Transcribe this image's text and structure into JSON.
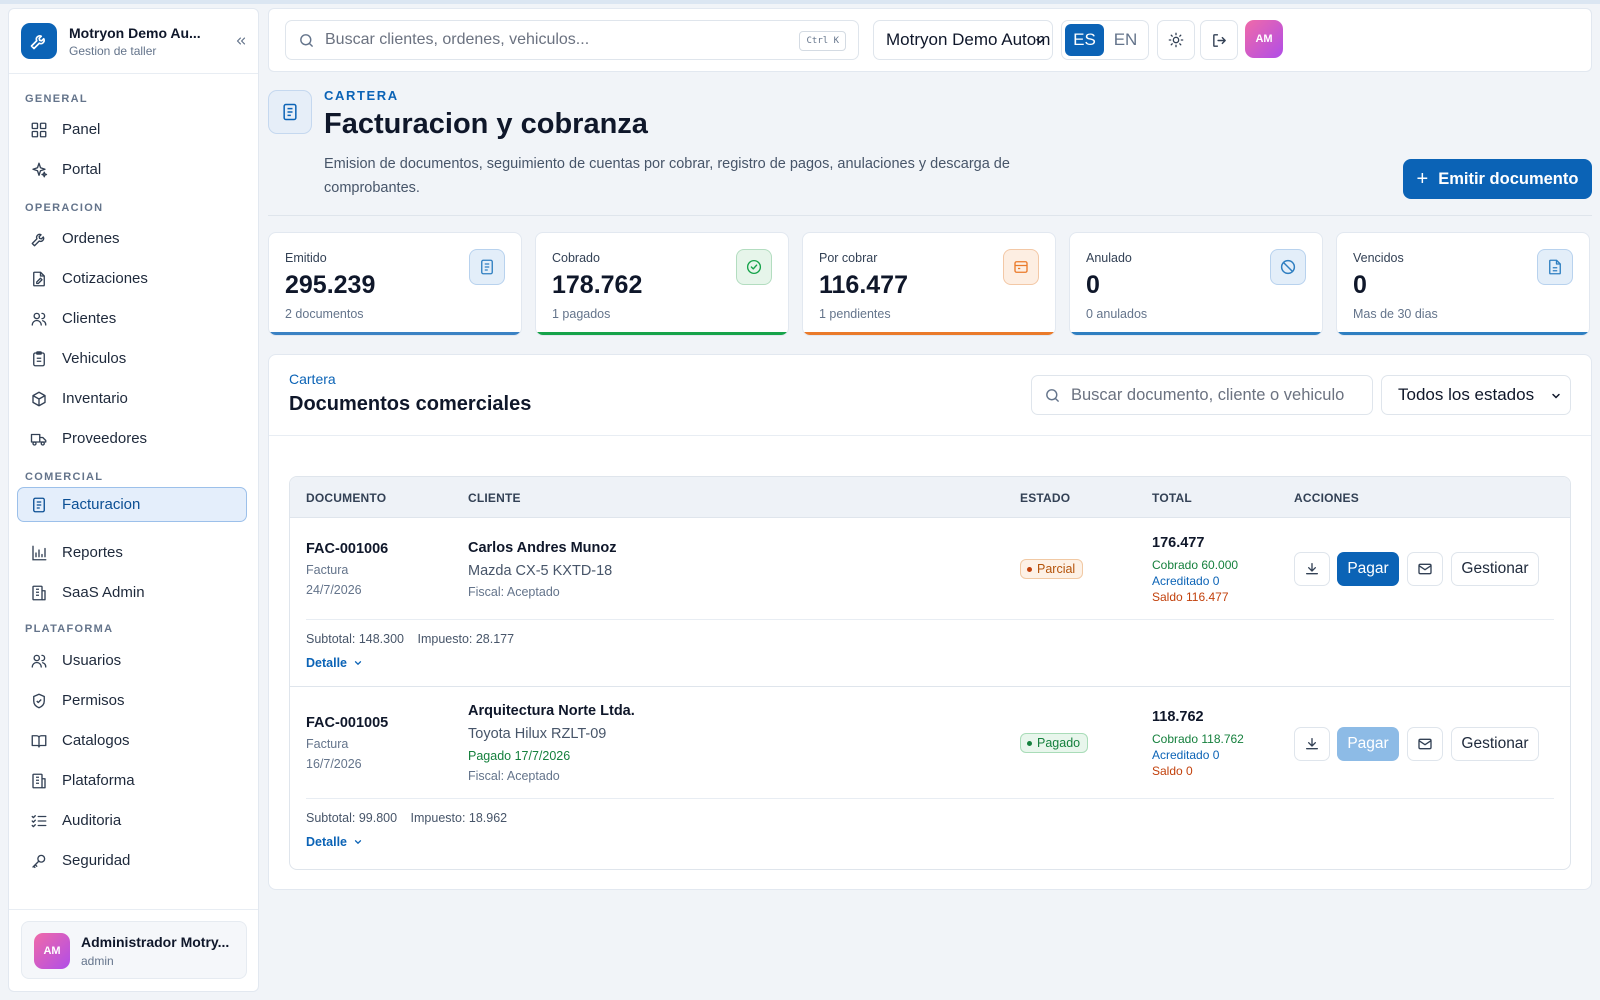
{
  "app": {
    "name": "Motryon Demo Au...",
    "subtitle": "Gestion de taller",
    "accent": "#0b63b6"
  },
  "sidebar": {
    "sections": {
      "general": "GENERAL",
      "operacion": "OPERACION",
      "comercial": "COMERCIAL",
      "plataforma": "PLATAFORMA"
    },
    "items": [
      {
        "label": "Panel",
        "icon": "grid-icon"
      },
      {
        "label": "Portal",
        "icon": "sparkle-icon"
      },
      {
        "label": "Ordenes",
        "icon": "wrench-icon"
      },
      {
        "label": "Cotizaciones",
        "icon": "document-edit-icon"
      },
      {
        "label": "Clientes",
        "icon": "users-icon"
      },
      {
        "label": "Vehiculos",
        "icon": "clipboard-icon"
      },
      {
        "label": "Inventario",
        "icon": "box-icon"
      },
      {
        "label": "Proveedores",
        "icon": "truck-icon"
      },
      {
        "label": "Facturacion",
        "icon": "receipt-icon",
        "active": true
      },
      {
        "label": "Reportes",
        "icon": "bar-chart-icon"
      },
      {
        "label": "SaaS Admin",
        "icon": "building-icon"
      },
      {
        "label": "Usuarios",
        "icon": "users-icon"
      },
      {
        "label": "Permisos",
        "icon": "shield-icon"
      },
      {
        "label": "Catalogos",
        "icon": "book-icon"
      },
      {
        "label": "Plataforma",
        "icon": "building-icon"
      },
      {
        "label": "Auditoria",
        "icon": "list-check-icon"
      },
      {
        "label": "Seguridad",
        "icon": "key-icon"
      }
    ],
    "user": {
      "initials": "AM",
      "name": "Administrador Motry...",
      "role": "admin"
    }
  },
  "topbar": {
    "search_placeholder": "Buscar clientes, ordenes, vehiculos...",
    "shortcut": "Ctrl K",
    "company": "Motryon Demo Autom",
    "languages": [
      "ES",
      "EN"
    ],
    "active_language": "ES",
    "avatar": "AM"
  },
  "header": {
    "eyebrow": "CARTERA",
    "title": "Facturacion y cobranza",
    "description": "Emision de documentos, seguimiento de cuentas por cobrar, registro de pagos, anulaciones y descarga de comprobantes.",
    "primary_action": "Emitir documento"
  },
  "stats": [
    {
      "label": "Emitido",
      "value": "295.239",
      "sub": "2 documentos",
      "icon": "receipt-icon",
      "color": "#3b82c4"
    },
    {
      "label": "Cobrado",
      "value": "178.762",
      "sub": "1 pagados",
      "icon": "check-circle-icon",
      "color": "#16a34a"
    },
    {
      "label": "Por cobrar",
      "value": "116.477",
      "sub": "1 pendientes",
      "icon": "wallet-icon",
      "color": "#ea7a2a"
    },
    {
      "label": "Anulado",
      "value": "0",
      "sub": "0 anulados",
      "icon": "ban-icon",
      "color": "#2f7fc1"
    },
    {
      "label": "Vencidos",
      "value": "0",
      "sub": "Mas de 30 dias",
      "icon": "document-icon",
      "color": "#2f7fc1"
    }
  ],
  "panel": {
    "eyebrow": "Cartera",
    "title": "Documentos comerciales",
    "search_placeholder": "Buscar documento, cliente o vehiculo",
    "status_filter": "Todos los estados",
    "columns": [
      "DOCUMENTO",
      "CLIENTE",
      "ESTADO",
      "TOTAL",
      "ACCIONES"
    ],
    "rows": [
      {
        "id": "FAC-001006",
        "type": "Factura",
        "date": "24/7/2026",
        "client": "Carlos Andres Munoz",
        "vehicle": "Mazda CX-5 KXTD-18",
        "paid_on": "",
        "fiscal": "Fiscal: Aceptado",
        "status": "Parcial",
        "total": "176.477",
        "collected": "Cobrado 60.000",
        "credited": "Acreditado 0",
        "balance": "Saldo 116.477",
        "pay": "Pagar",
        "manage": "Gestionar",
        "subtotal": "Subtotal: 148.300",
        "tax": "Impuesto: 28.177",
        "detail": "Detalle"
      },
      {
        "id": "FAC-001005",
        "type": "Factura",
        "date": "16/7/2026",
        "client": "Arquitectura Norte Ltda.",
        "vehicle": "Toyota Hilux RZLT-09",
        "paid_on": "Pagado 17/7/2026",
        "fiscal": "Fiscal: Aceptado",
        "status": "Pagado",
        "total": "118.762",
        "collected": "Cobrado 118.762",
        "credited": "Acreditado 0",
        "balance": "Saldo 0",
        "pay": "Pagar",
        "manage": "Gestionar",
        "subtotal": "Subtotal: 99.800",
        "tax": "Impuesto: 18.962",
        "detail": "Detalle"
      }
    ]
  }
}
